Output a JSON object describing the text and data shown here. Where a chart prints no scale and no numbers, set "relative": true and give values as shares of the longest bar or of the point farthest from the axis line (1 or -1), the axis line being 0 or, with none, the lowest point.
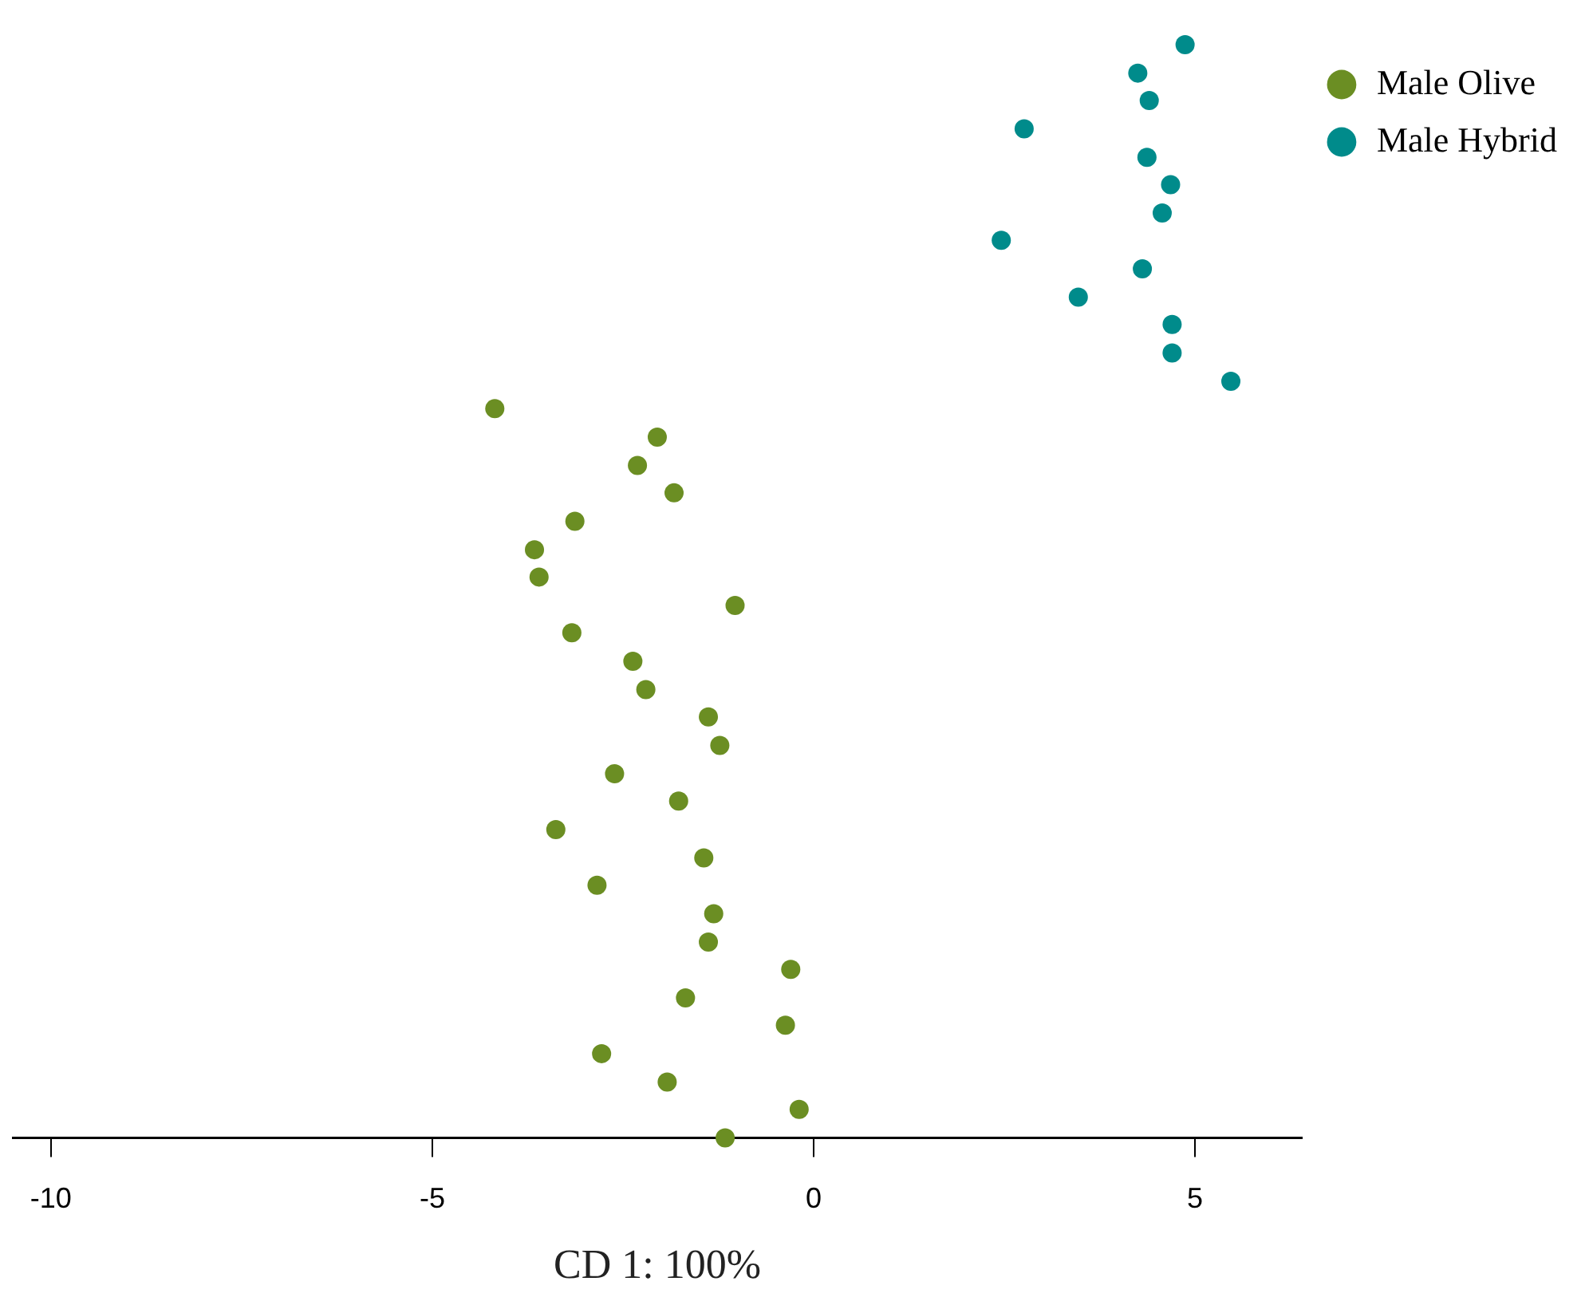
{
  "chart_data": {
    "type": "scatter",
    "relative": true,
    "xlabel": "CD 1: 100%",
    "xlim": [
      -10.5,
      6.4
    ],
    "xticks": [
      -10,
      -5,
      0,
      5
    ],
    "legend": "top right",
    "marker": "circle",
    "series": [
      {
        "name": "Male Olive",
        "color": "#6b8e23",
        "x": [
          -4.18,
          -2.05,
          -2.31,
          -1.83,
          -3.13,
          -3.66,
          -3.6,
          -1.03,
          -3.17,
          -2.37,
          -2.2,
          -1.38,
          -1.23,
          -2.61,
          -1.77,
          -3.38,
          -1.44,
          -2.84,
          -1.31,
          -1.38,
          -0.3,
          -1.68,
          -0.37,
          -2.78,
          -1.92,
          -0.19,
          -1.16
        ],
        "values": [
          0.667,
          0.641,
          0.615,
          0.59,
          0.564,
          0.538,
          0.513,
          0.487,
          0.462,
          0.436,
          0.41,
          0.385,
          0.359,
          0.333,
          0.308,
          0.282,
          0.256,
          0.231,
          0.205,
          0.179,
          0.154,
          0.128,
          0.103,
          0.077,
          0.051,
          0.026,
          0
        ]
      },
      {
        "name": "Male Hybrid",
        "color": "#008b8b",
        "x": [
          4.87,
          4.25,
          4.4,
          2.76,
          4.37,
          4.68,
          4.57,
          2.46,
          4.31,
          3.47,
          4.7,
          4.7,
          5.47
        ],
        "values": [
          1,
          0.974,
          0.949,
          0.923,
          0.897,
          0.872,
          0.846,
          0.821,
          0.795,
          0.769,
          0.744,
          0.718,
          0.692
        ]
      }
    ]
  }
}
